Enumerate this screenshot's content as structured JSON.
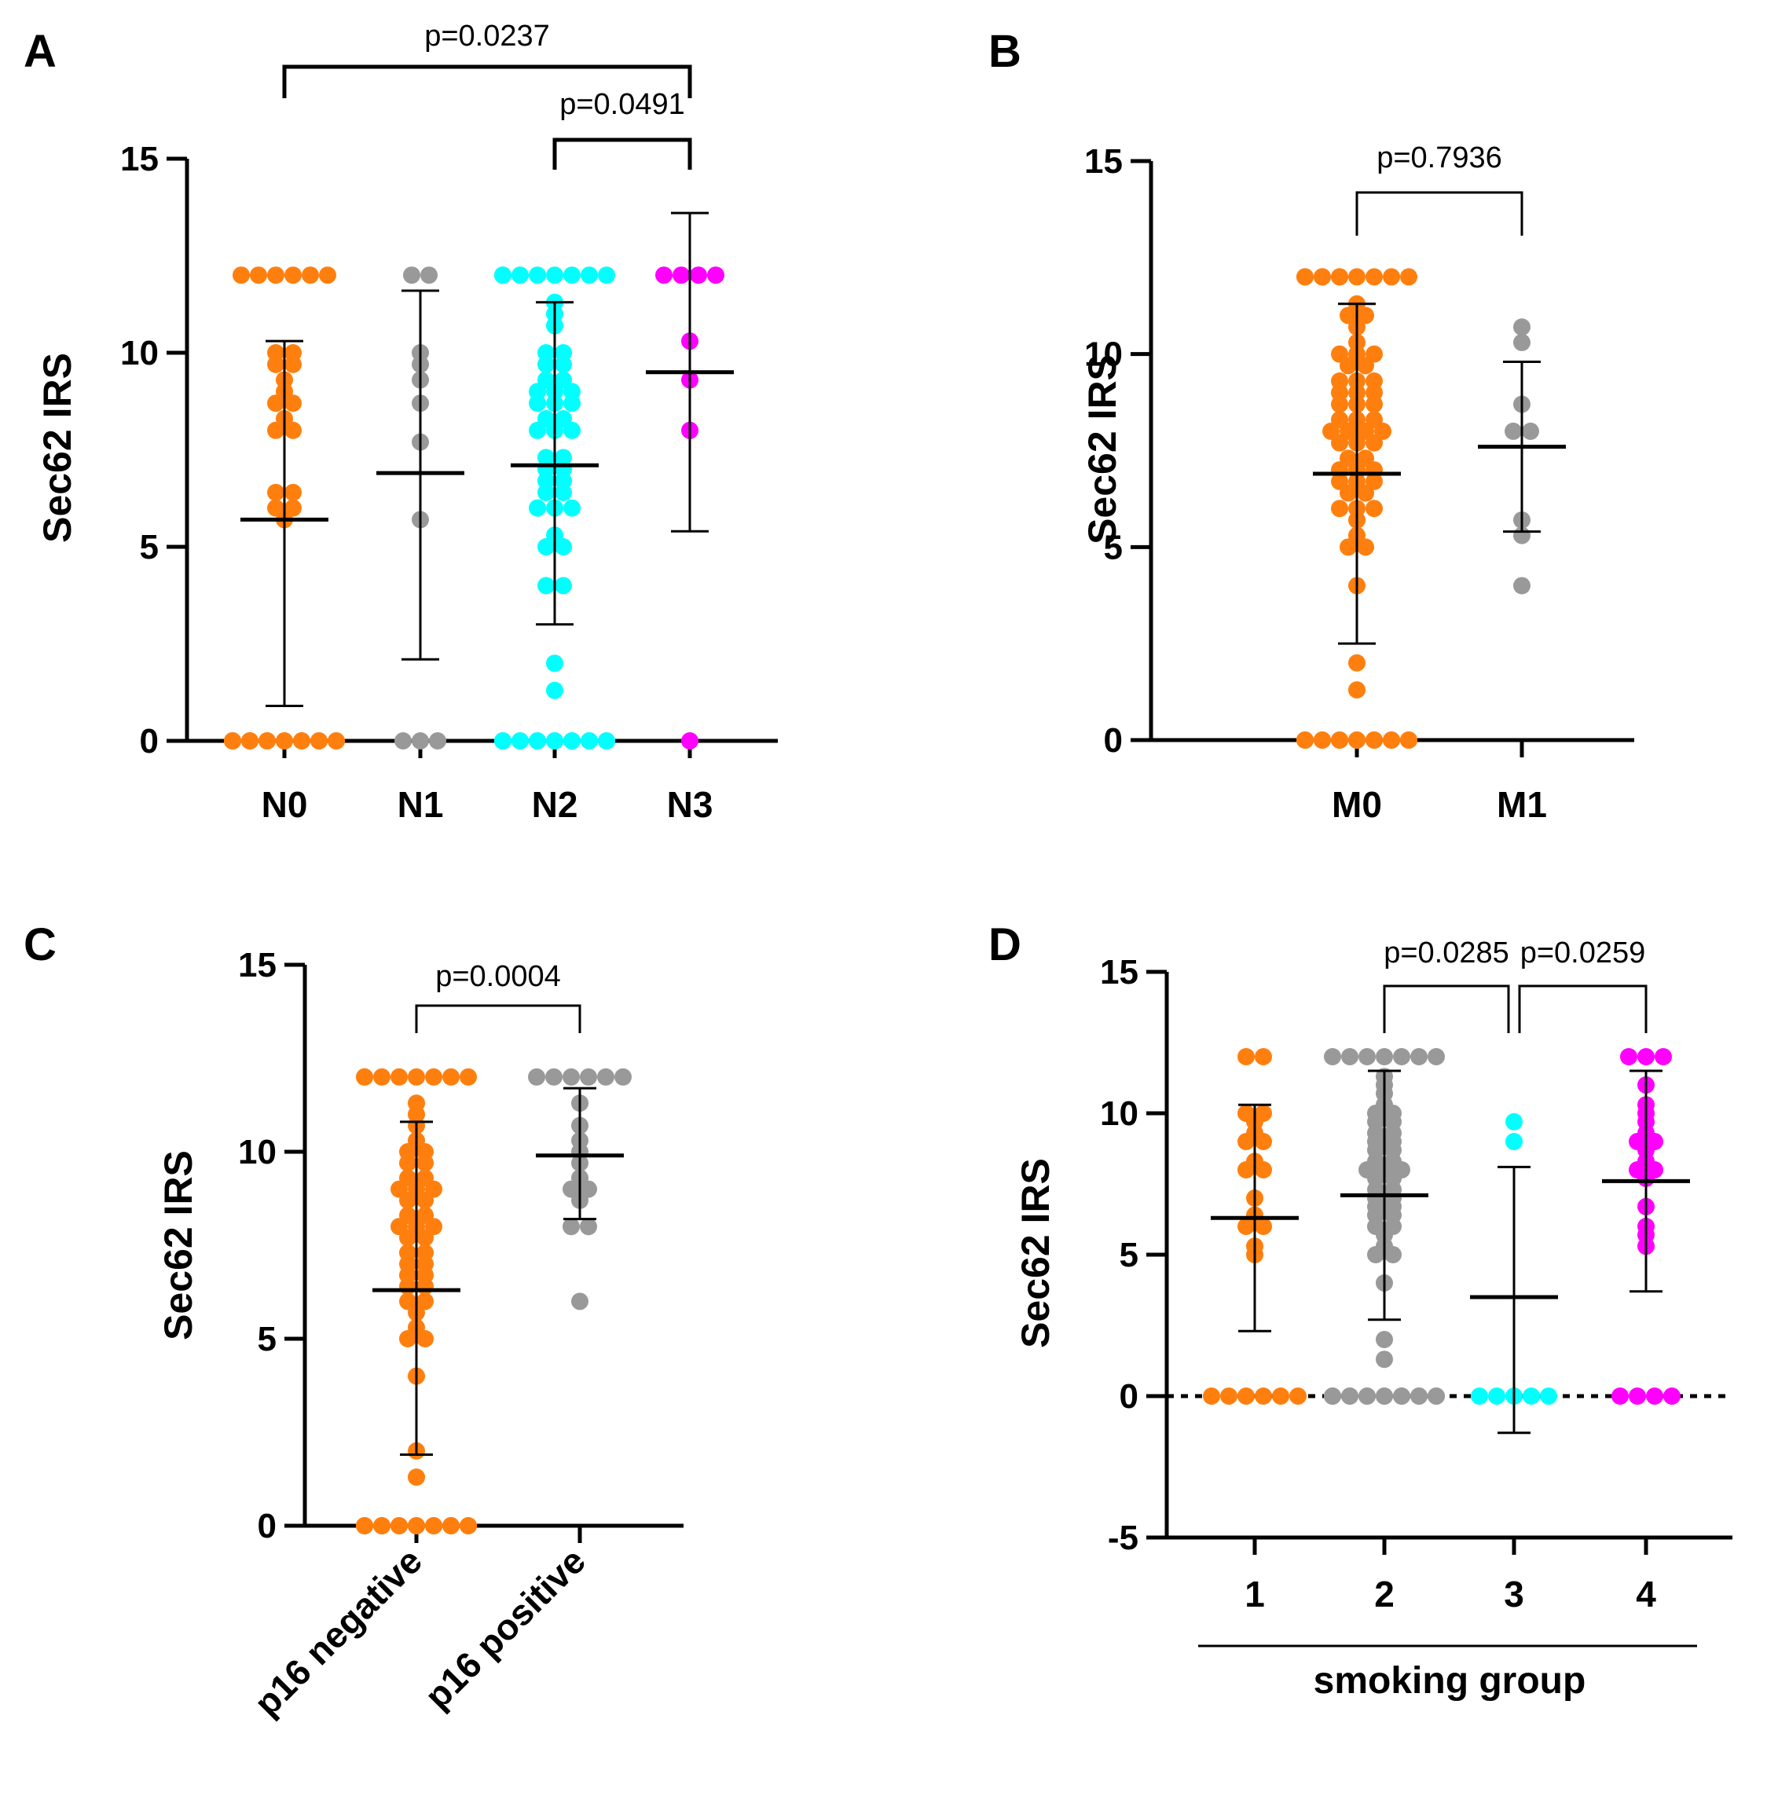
{
  "chart_data": [
    {
      "panel": "A",
      "type": "scatter",
      "ylabel": "Sec62 IRS",
      "ylim": [
        0,
        15
      ],
      "yticks": [
        0,
        5,
        10,
        15
      ],
      "categories": [
        "N0",
        "N1",
        "N2",
        "N3"
      ],
      "colors": [
        "#ff7f0e",
        "#999999",
        "#00ffff",
        "#ff00ff"
      ],
      "mean": [
        5.7,
        6.9,
        7.1,
        9.5
      ],
      "sd_low": [
        0.9,
        2.1,
        3.0,
        5.4
      ],
      "sd_high": [
        10.3,
        11.6,
        11.3,
        13.6
      ],
      "points": [
        [
          0,
          0,
          0,
          0,
          0,
          0,
          0,
          0,
          0,
          0,
          0,
          0,
          0,
          0,
          0,
          0,
          5.7,
          6,
          6,
          6.4,
          6.4,
          8,
          8,
          8.3,
          8.7,
          8.7,
          9,
          9.3,
          9.7,
          9.7,
          10,
          10,
          12,
          12,
          12,
          12,
          12,
          12
        ],
        [
          0,
          0,
          0,
          5.7,
          7.7,
          8.7,
          9.3,
          9.7,
          10,
          12,
          12
        ],
        [
          0,
          0,
          0,
          0,
          0,
          0,
          0,
          0,
          0,
          0,
          0,
          0,
          0,
          0,
          0,
          1.3,
          2,
          4,
          4,
          5,
          5,
          5.3,
          6,
          6,
          6,
          6.4,
          6.4,
          6.7,
          6.7,
          7,
          7,
          7.3,
          7.3,
          8,
          8,
          8,
          8.3,
          8.3,
          8.7,
          8.7,
          8.7,
          9,
          9,
          9,
          9.3,
          9.3,
          9.7,
          9.7,
          10,
          10,
          10.7,
          11,
          11.3,
          12,
          12,
          12,
          12,
          12,
          12,
          12,
          12
        ],
        [
          0,
          8,
          9.3,
          10.3,
          12,
          12,
          12,
          12
        ]
      ],
      "comparisons": [
        {
          "from": "N0",
          "to": "N3",
          "label": "p=0.0237"
        },
        {
          "from": "N2",
          "to": "N3",
          "label": "p=0.0491"
        }
      ],
      "baseline": "solid"
    },
    {
      "panel": "B",
      "type": "scatter",
      "ylabel": "Sec62 IRS",
      "ylim": [
        0,
        15
      ],
      "yticks": [
        0,
        5,
        10,
        15
      ],
      "categories": [
        "M0",
        "M1"
      ],
      "colors": [
        "#ff7f0e",
        "#999999"
      ],
      "mean": [
        6.9,
        7.6
      ],
      "sd_low": [
        2.5,
        5.4
      ],
      "sd_high": [
        11.3,
        9.8
      ],
      "points": [
        [
          0,
          0,
          0,
          0,
          0,
          0,
          0,
          0,
          0,
          0,
          0,
          0,
          0,
          0,
          0,
          0,
          0,
          0,
          0,
          0,
          0,
          0,
          1.3,
          2,
          4,
          5,
          5,
          5.3,
          5.7,
          6,
          6,
          6,
          6.4,
          6.4,
          6.7,
          6.7,
          6.7,
          7,
          7,
          7,
          7.3,
          7.3,
          7.7,
          7.7,
          7.7,
          8,
          8,
          8,
          8,
          8.3,
          8.3,
          8.3,
          8.7,
          8.7,
          8.7,
          9,
          9,
          9,
          9.3,
          9.3,
          9.3,
          9.7,
          9.7,
          10,
          10,
          10,
          10.3,
          10.7,
          11,
          11,
          11.3,
          12,
          12,
          12,
          12,
          12,
          12,
          12,
          12,
          12,
          12
        ],
        [
          4,
          5.3,
          5.7,
          8,
          8,
          8.7,
          10.3,
          10.7
        ]
      ],
      "comparisons": [
        {
          "from": "M0",
          "to": "M1",
          "label": "p=0.7936"
        }
      ],
      "baseline": "solid"
    },
    {
      "panel": "C",
      "type": "scatter",
      "ylabel": "Sec62 IRS",
      "ylim": [
        0,
        15
      ],
      "yticks": [
        0,
        5,
        10,
        15
      ],
      "categories": [
        "p16 negative",
        "p16 positive"
      ],
      "colors": [
        "#ff7f0e",
        "#999999"
      ],
      "mean": [
        6.3,
        9.9
      ],
      "sd_low": [
        1.9,
        8.2
      ],
      "sd_high": [
        10.8,
        11.7
      ],
      "points": [
        [
          0,
          0,
          0,
          0,
          0,
          0,
          0,
          0,
          0,
          0,
          0,
          0,
          0,
          0,
          0,
          0,
          0,
          0,
          0,
          0,
          1.3,
          2,
          4,
          5,
          5,
          5.3,
          5.7,
          6,
          6,
          6.4,
          6.4,
          6.7,
          6.7,
          7,
          7,
          7.3,
          7.3,
          7.7,
          7.7,
          8,
          8,
          8,
          8.3,
          8.3,
          8.7,
          8.7,
          9,
          9,
          9,
          9.3,
          9.3,
          9.7,
          9.7,
          10,
          10,
          10.3,
          10.7,
          11,
          11.3,
          12,
          12,
          12,
          12,
          12,
          12,
          12,
          12
        ],
        [
          6,
          8,
          8,
          8.7,
          9,
          9,
          9.3,
          9.7,
          10,
          10.3,
          10.7,
          11.3,
          12,
          12,
          12,
          12,
          12,
          12
        ]
      ],
      "comparisons": [
        {
          "from": "p16 negative",
          "to": "p16 positive",
          "label": "p=0.0004"
        }
      ],
      "baseline": "solid",
      "rotated_labels": true
    },
    {
      "panel": "D",
      "type": "scatter",
      "ylabel": "Sec62 IRS",
      "xlabel": "smoking group",
      "ylim": [
        -5,
        15
      ],
      "yticks": [
        -5,
        0,
        5,
        10,
        15
      ],
      "categories": [
        "1",
        "2",
        "3",
        "4"
      ],
      "colors": [
        "#ff7f0e",
        "#999999",
        "#00ffff",
        "#ff00ff"
      ],
      "mean": [
        6.3,
        7.1,
        3.5,
        7.6
      ],
      "sd_low": [
        2.3,
        2.7,
        -1.3,
        3.7
      ],
      "sd_high": [
        10.3,
        11.5,
        8.1,
        11.5
      ],
      "points": [
        [
          0,
          0,
          0,
          0,
          0,
          0,
          5,
          5.3,
          6,
          6,
          6.4,
          7,
          8,
          8,
          8.3,
          9,
          9,
          9.3,
          9.7,
          10,
          10,
          12,
          12
        ],
        [
          0,
          0,
          0,
          0,
          0,
          0,
          0,
          0,
          0,
          0,
          0,
          0,
          0,
          0,
          0,
          1.3,
          2,
          4,
          5,
          5,
          5.3,
          5.7,
          6,
          6,
          6.4,
          6.4,
          6.7,
          6.7,
          7,
          7,
          7.3,
          7.3,
          7.7,
          7.7,
          8,
          8,
          8,
          8.3,
          8.3,
          8.7,
          8.7,
          9,
          9,
          9.3,
          9.3,
          9.7,
          9.7,
          10,
          10,
          10.3,
          10.7,
          11,
          11.3,
          12,
          12,
          12,
          12,
          12,
          12,
          12
        ],
        [
          0,
          0,
          0,
          0,
          0,
          9,
          9.7
        ],
        [
          0,
          0,
          0,
          0,
          5.3,
          5.7,
          6,
          6.7,
          7.7,
          8,
          8,
          8.3,
          8.7,
          9,
          9,
          9.3,
          9.7,
          10,
          10.3,
          11,
          12,
          12,
          12
        ]
      ],
      "comparisons": [
        {
          "from": "2",
          "to": "3",
          "label": "p=0.0285"
        },
        {
          "from": "3",
          "to": "4",
          "label": "p=0.0259"
        }
      ],
      "baseline": "dotted"
    }
  ]
}
